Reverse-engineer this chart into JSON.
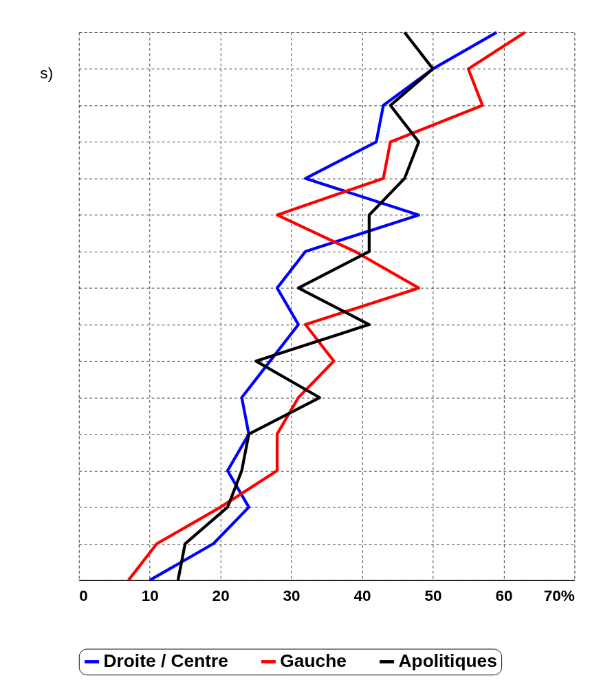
{
  "chart_data": {
    "type": "line",
    "orientation": "horizontal",
    "annotations": [
      "s)"
    ],
    "categories": [
      null,
      null,
      null,
      null,
      null,
      null,
      null,
      null,
      null,
      null,
      null,
      null,
      null,
      null,
      null,
      null
    ],
    "series": [
      {
        "name": "Droite / Centre",
        "color": "#0000ff",
        "values": [
          59,
          50,
          43,
          42,
          32,
          48,
          32,
          28,
          31,
          27,
          23,
          24,
          21,
          24,
          19,
          10
        ]
      },
      {
        "name": "Gauche",
        "color": "#ff0000",
        "values": [
          63,
          55,
          57,
          44,
          43,
          28,
          39,
          48,
          32,
          36,
          31,
          28,
          28,
          20,
          11,
          7
        ]
      },
      {
        "name": "Apolitiques",
        "color": "#000000",
        "values": [
          46,
          50,
          44,
          48,
          46,
          41,
          41,
          31,
          41,
          25,
          34,
          24,
          23,
          21,
          15,
          14
        ]
      }
    ],
    "xlim": [
      0,
      70
    ],
    "xticks": [
      0,
      10,
      20,
      30,
      40,
      50,
      60,
      {
        "value": 70,
        "label": "70%"
      }
    ],
    "grid": true,
    "legend": "bottom",
    "tick_labels": "x",
    "line_style": "solid",
    "marker": "none"
  }
}
